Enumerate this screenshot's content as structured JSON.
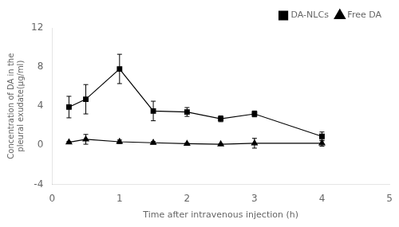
{
  "chart_data": {
    "type": "line",
    "x": [
      0.25,
      0.5,
      1.0,
      1.5,
      2.0,
      2.5,
      3.0,
      4.0
    ],
    "series": [
      {
        "name": "DA-NLCs",
        "color": "black",
        "marker": "square",
        "values": [
          3.9,
          4.7,
          7.8,
          3.5,
          3.4,
          2.7,
          3.2,
          0.9
        ],
        "yerr": [
          1.1,
          1.5,
          1.5,
          1.0,
          0.45,
          0.3,
          0.3,
          0.45
        ]
      },
      {
        "name": "Free DA",
        "color": "black",
        "marker": "triangle",
        "values": [
          0.3,
          0.6,
          0.35,
          0.25,
          0.15,
          0.1,
          0.2,
          0.2
        ],
        "yerr": [
          0.08,
          0.5,
          0.18,
          0.12,
          0.07,
          0.05,
          0.5,
          0.3
        ]
      }
    ],
    "xlabel": "Time after intravenous injection (h)",
    "ylabel": "Concentration of DA in the\npleural exudate(μg/ml)",
    "xlim": [
      0.0,
      5.0
    ],
    "ylim": [
      -4,
      12
    ],
    "xticks": [
      0,
      1,
      2,
      3,
      4,
      5
    ],
    "yticks": [
      -4,
      0,
      4,
      8,
      12
    ],
    "grid": false,
    "legend": "upper right"
  }
}
